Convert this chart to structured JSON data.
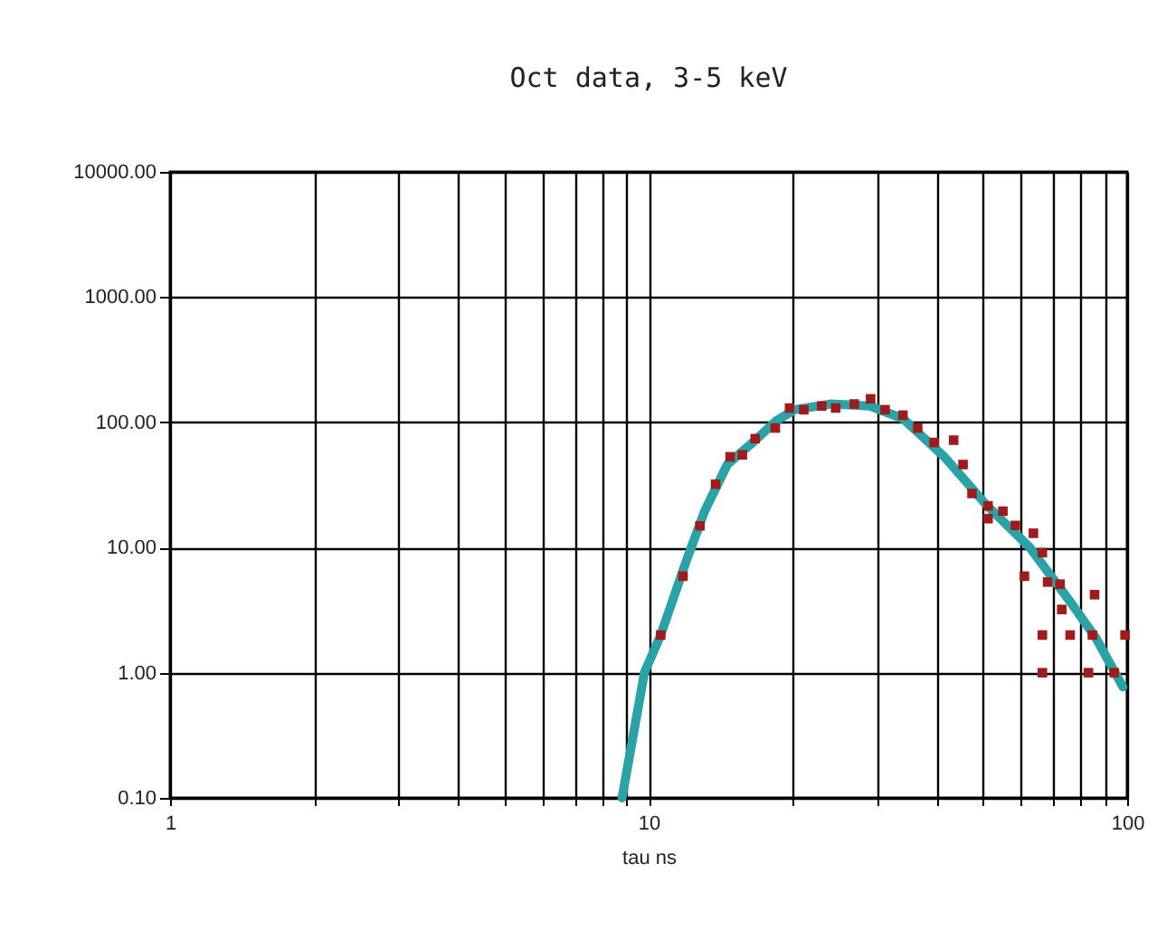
{
  "chart_data": {
    "type": "scatter",
    "title": "Oct data, 3-5 keV",
    "xlabel": "tau  ns",
    "log": "xy",
    "grid": true,
    "marker": "square",
    "xlim": [
      1,
      100
    ],
    "ylim": [
      0.1,
      10000
    ],
    "xticks": [
      1,
      {
        "value": 2,
        "label": null
      },
      {
        "value": 3,
        "label": null
      },
      {
        "value": 4,
        "label": null
      },
      {
        "value": 5,
        "label": null
      },
      {
        "value": 6,
        "label": null
      },
      {
        "value": 7,
        "label": null
      },
      {
        "value": 8,
        "label": null
      },
      {
        "value": 9,
        "label": null
      },
      10,
      {
        "value": 20,
        "label": null
      },
      {
        "value": 30,
        "label": null
      },
      {
        "value": 40,
        "label": null
      },
      {
        "value": 50,
        "label": null
      },
      {
        "value": 60,
        "label": null
      },
      {
        "value": 70,
        "label": null
      },
      {
        "value": 80,
        "label": null
      },
      {
        "value": 90,
        "label": null
      },
      100
    ],
    "yticks": [
      {
        "value": 0.1,
        "label": "0.10"
      },
      {
        "value": 1,
        "label": "1.00"
      },
      {
        "value": 10,
        "label": "10.00"
      },
      {
        "value": 100,
        "label": "100.00"
      },
      {
        "value": 1000,
        "label": "1000.00"
      },
      {
        "value": 10000,
        "label": "10000.00"
      }
    ],
    "series": [
      {
        "type": "line",
        "marker": "none",
        "color": "#2aa3a6",
        "x": [
          8.8,
          9.8,
          10.6,
          12,
          13.1,
          14.6,
          16.5,
          18.5,
          20.2,
          24,
          29,
          34,
          41.5,
          51,
          62.6,
          76,
          86,
          98
        ],
        "values": [
          0.1,
          1,
          2,
          7.9,
          19.6,
          46,
          69,
          103,
          126,
          140,
          135,
          107,
          53,
          21.5,
          10,
          3.7,
          1.9,
          0.77
        ]
      },
      {
        "type": "scatter",
        "color": "#a01c1c",
        "x": [
          10.6,
          11.8,
          12.8,
          13.8,
          14.8,
          15.7,
          16.7,
          18.4,
          19.7,
          21.1,
          23,
          24.6,
          26.9,
          29.1,
          31.2,
          34,
          36.5,
          39.5,
          43.4,
          45.4,
          47.4,
          51.2,
          51.2,
          55,
          58.4,
          63.7,
          61,
          66.5,
          68.2,
          72.4,
          73,
          85.5,
          66.5,
          76,
          84.6,
          99,
          66.5,
          83,
          94
        ],
        "values": [
          2,
          5.9,
          14.9,
          32,
          53,
          55,
          74,
          90,
          130,
          126,
          135,
          130,
          140,
          154,
          126,
          114,
          90,
          69,
          72,
          46,
          27,
          21.5,
          17,
          19.5,
          15,
          13,
          5.9,
          9.1,
          5.3,
          5.1,
          3.2,
          4.2,
          2,
          2,
          2,
          2,
          1,
          1,
          1
        ]
      }
    ]
  }
}
